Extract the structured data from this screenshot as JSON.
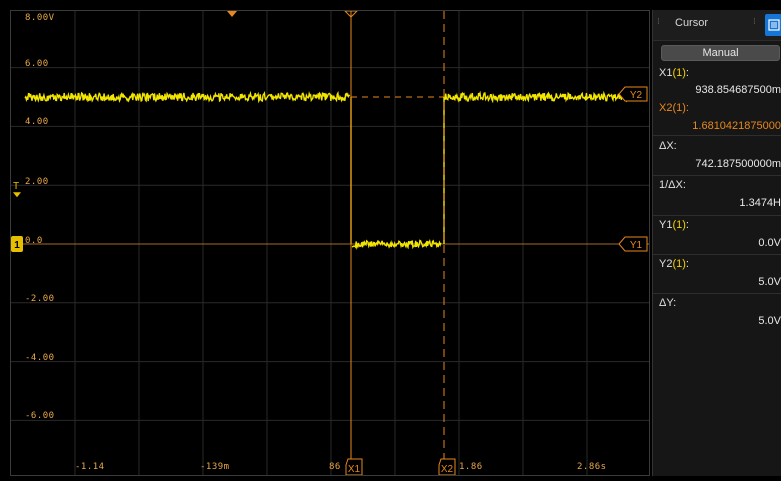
{
  "scope": {
    "volt_labels": [
      "8.00V",
      "6.00",
      "4.00",
      "2.00",
      "0.0",
      "-2.00",
      "-4.00",
      "-6.00"
    ],
    "time_labels": [
      "-1.14",
      "-139m",
      "86",
      "1.86",
      "2.86s"
    ],
    "trigger_label": "T",
    "channel_badge": "1",
    "cursors": {
      "x1_label": "X1",
      "x2_label": "X2",
      "y1_label": "Y1",
      "y2_label": "Y2"
    },
    "colors": {
      "trace": "#f2e600",
      "cursor": "#e8871e",
      "grid": "#2a2a2a",
      "volt_label": "#e9a84a"
    }
  },
  "panel": {
    "title": "Cursor",
    "mode": "Manual",
    "rows": [
      {
        "label": "X1",
        "channel": "(1)",
        "suffix": ":",
        "value": "938.854687500m",
        "accent": "default"
      },
      {
        "label": "X2",
        "channel": "(1)",
        "suffix": ":",
        "value": "1.6810421875000",
        "accent": "orange"
      },
      {
        "label": "ΔX:",
        "channel": "",
        "suffix": "",
        "value": "742.187500000m",
        "accent": "default"
      },
      {
        "label": "1/ΔX:",
        "channel": "",
        "suffix": "",
        "value": "1.3474H",
        "accent": "default"
      },
      {
        "label": "Y1",
        "channel": "(1)",
        "suffix": ":",
        "value": "0.0V",
        "accent": "default"
      },
      {
        "label": "Y2",
        "channel": "(1)",
        "suffix": ":",
        "value": "5.0V",
        "accent": "default"
      },
      {
        "label": "ΔY:",
        "channel": "",
        "suffix": "",
        "value": "5.0V",
        "accent": "default"
      }
    ],
    "icons": {
      "grip": "grip-dots-icon",
      "tab": "list-panel-icon"
    }
  }
}
